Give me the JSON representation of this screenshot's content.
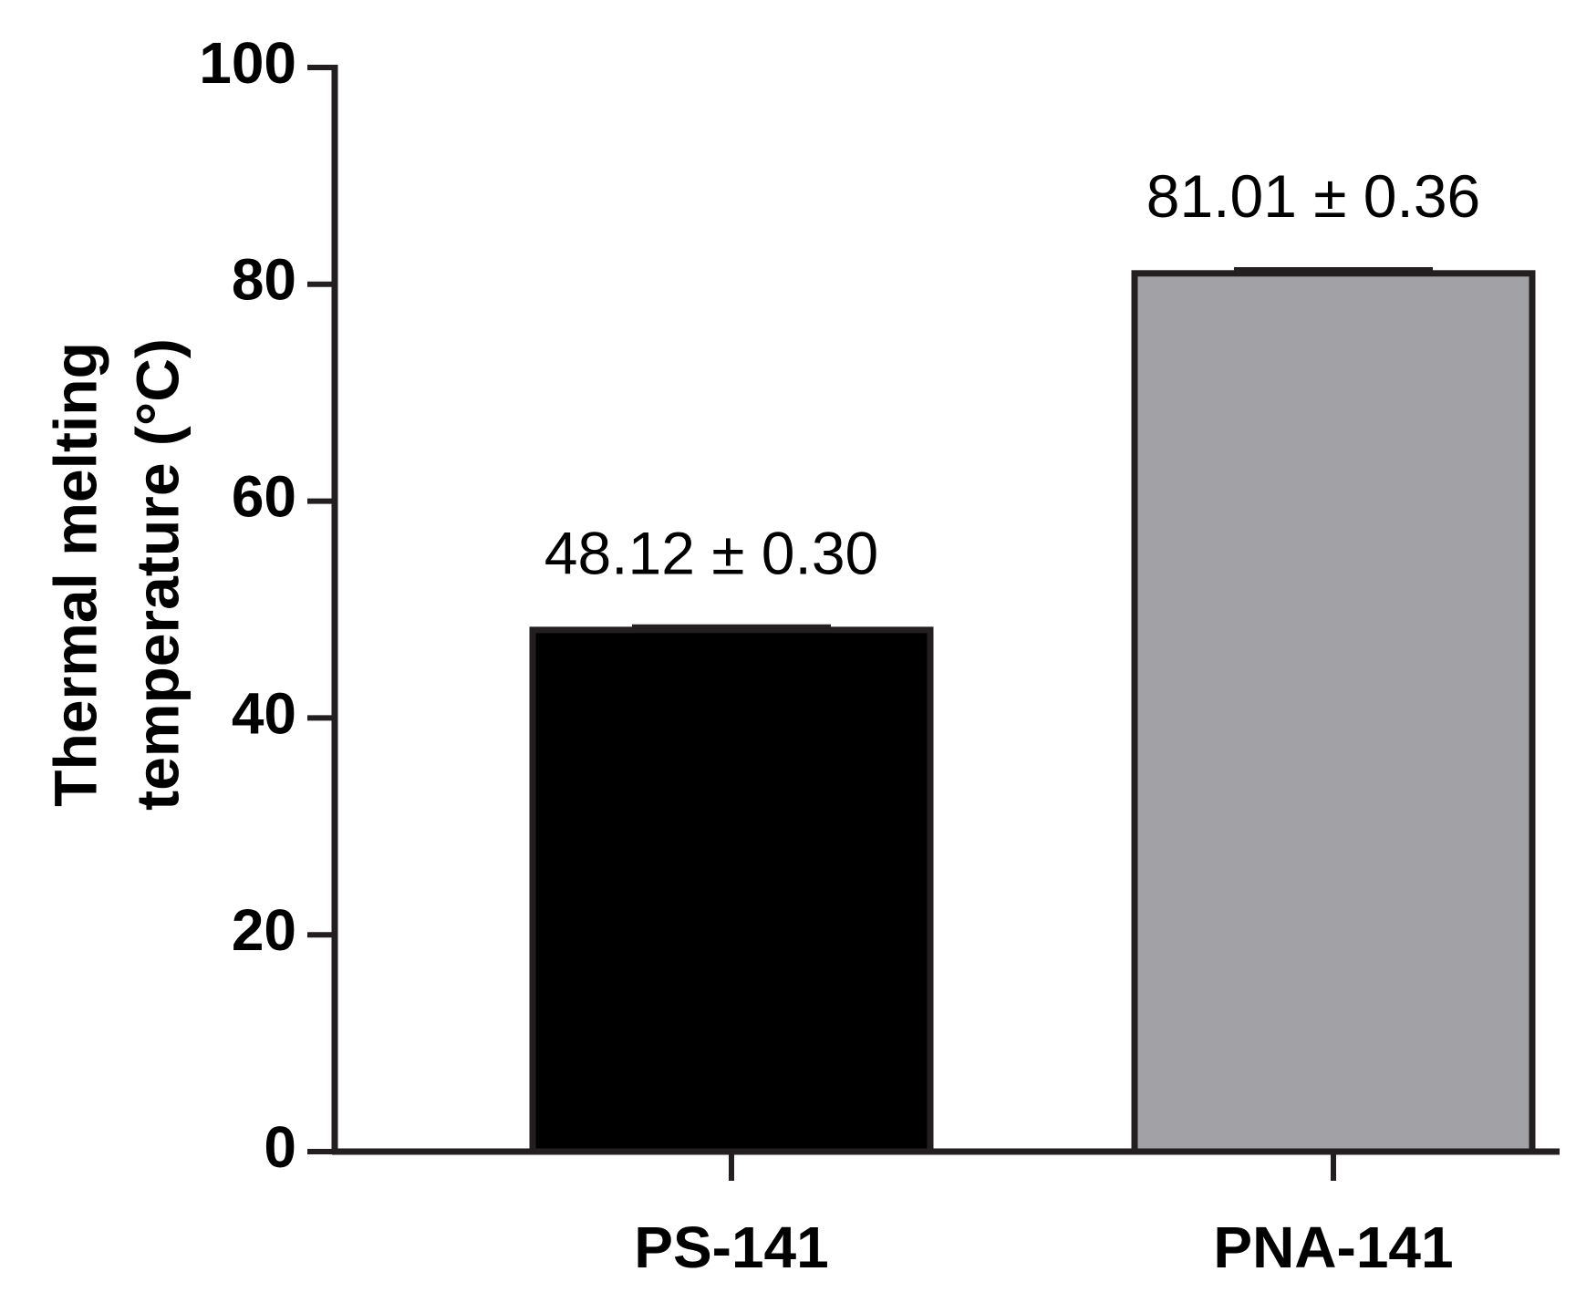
{
  "chart_data": {
    "type": "bar",
    "categories": [
      "PS-141",
      "PNA-141"
    ],
    "values": [
      48.12,
      81.01
    ],
    "errors": [
      0.3,
      0.36
    ],
    "value_labels": [
      "48.12 ± 0.30",
      "81.01 ± 0.36"
    ],
    "ylabel_lines": [
      "Thermal melting",
      "temperature  (°C)"
    ],
    "xlabel": "",
    "title": "",
    "ylim": [
      0,
      100
    ],
    "yticks": [
      0,
      20,
      40,
      60,
      80,
      100
    ],
    "ytick_labels": [
      "0",
      "20",
      "40",
      "60",
      "80",
      "100"
    ],
    "grid": false,
    "legend": "none",
    "colors": {
      "bar_fills": [
        "#000000",
        "#a2a1a6"
      ],
      "bar_stroke": "#231f20",
      "axis": "#231f20",
      "text": "#000000"
    }
  }
}
